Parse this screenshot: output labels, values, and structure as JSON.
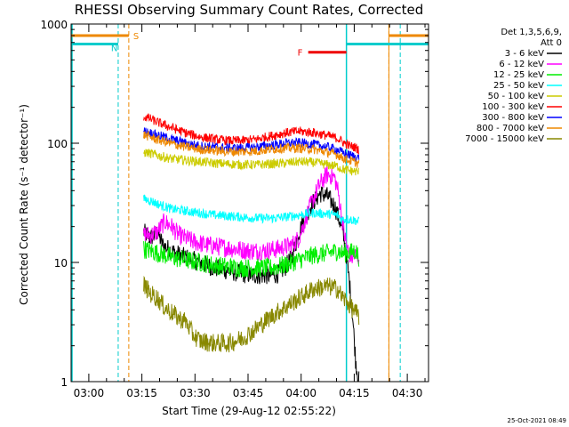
{
  "chart_data": {
    "type": "line",
    "title": "RHESSI Observing Summary Count Rates, Corrected",
    "xlabel": "Start Time (29-Aug-12 02:55:22)",
    "ylabel": "Corrected Count Rate (s⁻¹ detector⁻¹)",
    "y_scale": "log",
    "ylim": [
      1,
      1000
    ],
    "xlim_minutes_after_start": [
      -0.4,
      100.6
    ],
    "x_ticks": [
      {
        "label": "03:00",
        "min": 4.6
      },
      {
        "label": "03:15",
        "min": 19.6
      },
      {
        "label": "03:30",
        "min": 34.6
      },
      {
        "label": "03:45",
        "min": 49.6
      },
      {
        "label": "04:00",
        "min": 64.6
      },
      {
        "label": "04:15",
        "min": 79.6
      },
      {
        "label": "04:30",
        "min": 94.6
      }
    ],
    "y_ticks": [
      {
        "label": "1",
        "value": 1
      },
      {
        "label": "10",
        "value": 10
      },
      {
        "label": "100",
        "value": 100
      },
      {
        "label": "1000",
        "value": 1000
      }
    ],
    "legend_header": [
      "Det 1,3,5,6,9,",
      "Att 0"
    ],
    "legend_position": "right",
    "series": [
      {
        "name": "3 - 6 keV",
        "color": "#000000",
        "x": [
          20.1,
          22,
          24,
          25.5,
          27,
          29,
          32,
          36,
          40,
          44,
          48,
          52,
          56,
          58,
          60,
          62,
          64,
          66,
          68,
          70,
          72,
          74,
          76,
          77,
          78,
          79,
          79.5,
          80,
          80.5,
          81
        ],
        "y": [
          18,
          16,
          18,
          14,
          13,
          12,
          11,
          10,
          9,
          8.5,
          8,
          7.8,
          7.8,
          8,
          9,
          11,
          18,
          25,
          32,
          38,
          36,
          30,
          20,
          14,
          8,
          4,
          2.5,
          1.5,
          1.2,
          1
        ]
      },
      {
        "name": "6 - 12 keV",
        "color": "#ff00ff",
        "x": [
          20.1,
          22,
          24,
          26,
          28,
          30,
          34,
          38,
          42,
          46,
          50,
          54,
          58,
          62,
          64,
          66,
          68,
          70,
          72,
          74,
          75,
          76,
          77,
          78,
          79,
          80,
          81
        ],
        "y": [
          17,
          17,
          18,
          22,
          20,
          17,
          15,
          14,
          13.5,
          13,
          12.5,
          12.5,
          13,
          14,
          16,
          24,
          34,
          46,
          55,
          52,
          40,
          25,
          16,
          12,
          11,
          11.5,
          11
        ]
      },
      {
        "name": "12 - 25 keV",
        "color": "#00ee00",
        "x": [
          20.1,
          22,
          24,
          26,
          28,
          32,
          36,
          40,
          44,
          48,
          52,
          56,
          60,
          64,
          68,
          72,
          75,
          76,
          78,
          80,
          81
        ],
        "y": [
          13,
          12.5,
          12,
          11.5,
          11,
          10.5,
          10,
          9.5,
          9.2,
          9,
          9,
          9,
          9.5,
          10.5,
          11.5,
          12,
          12.5,
          12,
          12,
          12.5,
          11
        ]
      },
      {
        "name": "25 - 50 keV",
        "color": "#00ffff",
        "x": [
          20.1,
          22,
          24,
          28,
          32,
          36,
          40,
          44,
          48,
          52,
          56,
          60,
          64,
          68,
          72,
          75,
          76,
          78,
          80,
          81
        ],
        "y": [
          34,
          33,
          31,
          28,
          27,
          26,
          25,
          24.5,
          24,
          23.5,
          23.5,
          24,
          25,
          26,
          25.5,
          25,
          23,
          23,
          22.5,
          22
        ]
      },
      {
        "name": "50 - 100 keV",
        "color": "#cccc00",
        "x": [
          20.1,
          22,
          24,
          28,
          32,
          36,
          40,
          44,
          48,
          52,
          56,
          60,
          64,
          68,
          72,
          75,
          76,
          78,
          80,
          81
        ],
        "y": [
          84,
          82,
          79,
          74,
          72,
          70,
          68,
          67,
          66,
          66,
          67,
          68,
          70,
          69,
          66,
          64,
          61,
          59,
          58,
          57
        ]
      },
      {
        "name": "100 - 300 keV",
        "color": "#ff0000",
        "x": [
          20.1,
          22,
          24,
          28,
          32,
          36,
          40,
          44,
          48,
          52,
          56,
          60,
          64,
          68,
          72,
          75,
          76,
          78,
          80,
          81
        ],
        "y": [
          168,
          160,
          150,
          135,
          122,
          113,
          108,
          105,
          105,
          108,
          115,
          122,
          126,
          123,
          116,
          110,
          104,
          96,
          92,
          88
        ]
      },
      {
        "name": "300 - 800 keV",
        "color": "#0000ff",
        "x": [
          20.1,
          22,
          24,
          28,
          32,
          36,
          40,
          44,
          48,
          52,
          56,
          60,
          64,
          68,
          72,
          75,
          76,
          78,
          80,
          81
        ],
        "y": [
          126,
          122,
          117,
          108,
          100,
          95,
          93,
          91,
          91,
          93,
          96,
          100,
          101,
          98,
          93,
          88,
          84,
          80,
          77,
          75
        ]
      },
      {
        "name": "800 - 7000 keV",
        "color": "#ee8800",
        "x": [
          20.1,
          22,
          24,
          28,
          32,
          36,
          40,
          44,
          48,
          52,
          56,
          60,
          64,
          68,
          72,
          75,
          76,
          78,
          80,
          81
        ],
        "y": [
          118,
          113,
          107,
          99,
          93,
          89,
          87,
          85,
          85,
          86,
          89,
          91,
          91,
          89,
          84,
          80,
          76,
          72,
          69,
          67
        ]
      },
      {
        "name": "7000 - 15000 keV",
        "color": "#888800",
        "x": [
          20.1,
          22,
          24,
          26,
          28,
          30,
          32,
          34,
          36,
          40,
          44,
          48,
          52,
          56,
          60,
          64,
          68,
          72,
          75,
          76,
          78,
          80,
          81
        ],
        "y": [
          6.5,
          5.5,
          5,
          4.2,
          3.8,
          3.4,
          3.2,
          2.5,
          2.2,
          2.1,
          2.1,
          2.3,
          2.8,
          3.5,
          4.2,
          5,
          6,
          6.3,
          6,
          5.2,
          4.5,
          3.8,
          3.5
        ]
      }
    ],
    "flags": [
      {
        "label": "S",
        "color": "#ee8800",
        "x_start": -0.4,
        "x_end": 15.9,
        "x_end2": 89.4,
        "x_end2_stop": 100.6,
        "value": 800
      },
      {
        "label": "N",
        "color": "#00cccc",
        "x_start": -0.4,
        "x_end": 12.9,
        "x_end2": 77.4,
        "x_end2_stop": 100.6,
        "value": 680
      },
      {
        "label": "F",
        "color": "#ee0000",
        "x_start": 66.6,
        "x_end": 77.4,
        "value": 580
      }
    ],
    "night_markers": [
      12.9,
      92.6
    ],
    "saa_markers": [
      15.9,
      89.4
    ],
    "data_window": [
      20.1,
      81
    ],
    "grid": false
  },
  "footer": {
    "timestamp": "25-Oct-2021 08:49"
  }
}
